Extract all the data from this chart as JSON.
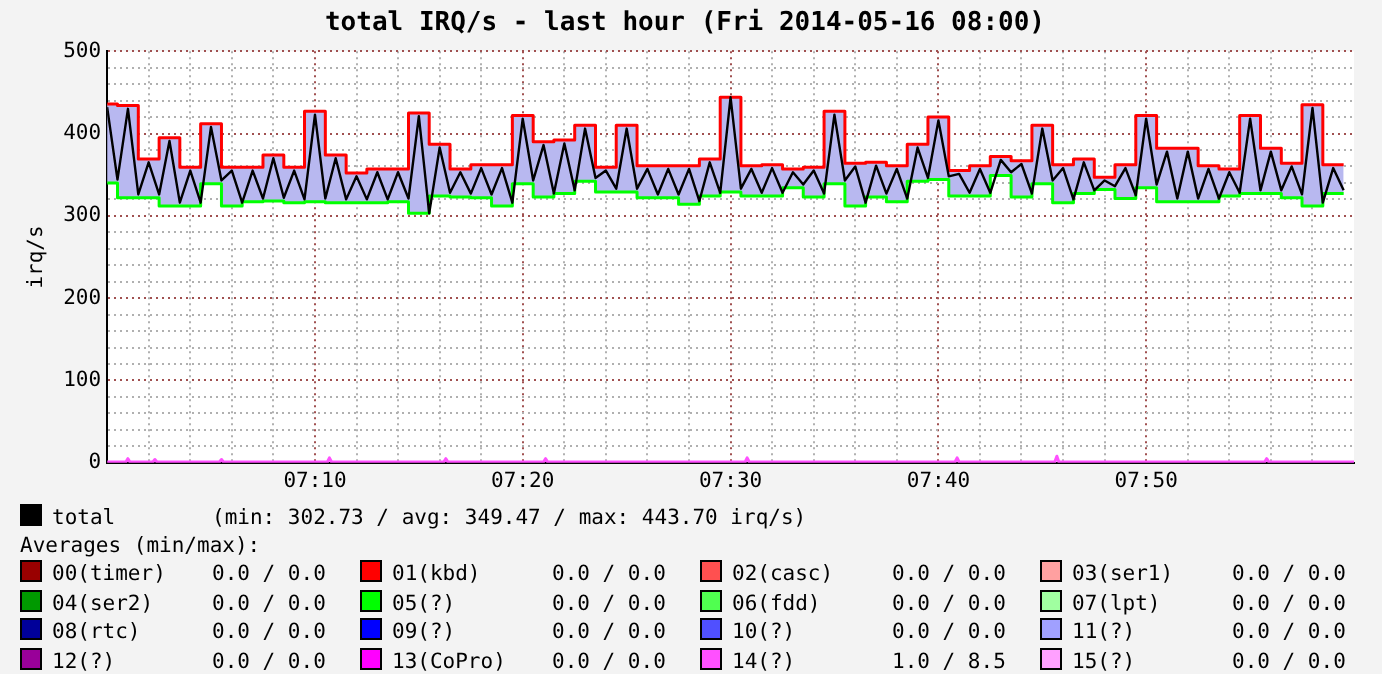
{
  "chart_data": {
    "type": "line",
    "title": "total IRQ/s - last hour (Fri 2014-05-16 08:00)",
    "ylabel": "irq/s",
    "xlim": [
      7,
      8
    ],
    "ylim": [
      0,
      500
    ],
    "xticks": [
      {
        "value": 7.0333,
        "label": null
      },
      {
        "value": 7.0667,
        "label": null
      },
      {
        "value": 7.1,
        "label": null
      },
      {
        "value": 7.1333,
        "label": null
      },
      {
        "value": 7.1667,
        "label": "07:10"
      },
      {
        "value": 7.2,
        "label": null
      },
      {
        "value": 7.2333,
        "label": null
      },
      {
        "value": 7.2667,
        "label": null
      },
      {
        "value": 7.3,
        "label": null
      },
      {
        "value": 7.3333,
        "label": "07:20"
      },
      {
        "value": 7.3667,
        "label": null
      },
      {
        "value": 7.4,
        "label": null
      },
      {
        "value": 7.4333,
        "label": null
      },
      {
        "value": 7.4667,
        "label": null
      },
      {
        "value": 7.5,
        "label": "07:30"
      },
      {
        "value": 7.5333,
        "label": null
      },
      {
        "value": 7.5667,
        "label": null
      },
      {
        "value": 7.6,
        "label": null
      },
      {
        "value": 7.6333,
        "label": null
      },
      {
        "value": 7.6667,
        "label": "07:40"
      },
      {
        "value": 7.7,
        "label": null
      },
      {
        "value": 7.7333,
        "label": null
      },
      {
        "value": 7.7667,
        "label": null
      },
      {
        "value": 7.8,
        "label": null
      },
      {
        "value": 7.8333,
        "label": "07:50"
      },
      {
        "value": 7.8667,
        "label": null
      },
      {
        "value": 7.9,
        "label": null
      },
      {
        "value": 7.9333,
        "label": null
      },
      {
        "value": 7.9667,
        "label": null
      }
    ],
    "yticks": [
      0,
      {
        "value": 20,
        "label": null
      },
      {
        "value": 40,
        "label": null
      },
      {
        "value": 60,
        "label": null
      },
      {
        "value": 80,
        "label": null
      },
      100,
      {
        "value": 120,
        "label": null
      },
      {
        "value": 140,
        "label": null
      },
      {
        "value": 160,
        "label": null
      },
      {
        "value": 180,
        "label": null
      },
      200,
      {
        "value": 220,
        "label": null
      },
      {
        "value": 240,
        "label": null
      },
      {
        "value": 260,
        "label": null
      },
      {
        "value": 280,
        "label": null
      },
      300,
      {
        "value": 320,
        "label": null
      },
      {
        "value": 340,
        "label": null
      },
      {
        "value": 360,
        "label": null
      },
      {
        "value": 380,
        "label": null
      },
      400,
      {
        "value": 420,
        "label": null
      },
      {
        "value": 440,
        "label": null
      },
      {
        "value": 460,
        "label": null
      },
      {
        "value": 480,
        "label": null
      },
      500
    ],
    "grid": true,
    "legend": "bottom",
    "annotations": [
      "(min: 302.73 / avg: 349.47 / max: 443.70 irq/s)",
      "Averages (min/max):",
      "0.0 / 0.0",
      "0.0 / 0.0",
      "0.0 / 0.0",
      "0.0 / 0.0",
      "0.0 / 0.0",
      "0.0 / 0.0",
      "0.0 / 0.0",
      "0.0 / 0.0",
      "0.0 / 0.0",
      "0.0 / 0.0",
      "0.0 / 0.0",
      "0.0 / 0.0",
      "0.0 / 0.0",
      "0.0 / 0.0",
      "1.0 / 8.5",
      "0.0 / 0.0"
    ],
    "series": [
      {
        "type": "step",
        "color": "#ff0000",
        "x": [
          7,
          7.0083,
          7.0167,
          7.025,
          7.0333,
          7.0417,
          7.05,
          7.0583,
          7.0667,
          7.075,
          7.0833,
          7.0917,
          7.1,
          7.1083,
          7.1167,
          7.125,
          7.1333,
          7.1417,
          7.15,
          7.1583,
          7.1667,
          7.175,
          7.1833,
          7.1917,
          7.2,
          7.2083,
          7.2167,
          7.225,
          7.2333,
          7.2417,
          7.25,
          7.2583,
          7.2667,
          7.275,
          7.2833,
          7.2917,
          7.3,
          7.3083,
          7.3167,
          7.325,
          7.3333,
          7.3417,
          7.35,
          7.3583,
          7.3667,
          7.375,
          7.3833,
          7.3917,
          7.4,
          7.4083,
          7.4167,
          7.425,
          7.4333,
          7.4417,
          7.45,
          7.4583,
          7.4667,
          7.475,
          7.4833,
          7.4917,
          7.5,
          7.5083,
          7.5167,
          7.525,
          7.5333,
          7.5417,
          7.55,
          7.5583,
          7.5667,
          7.575,
          7.5833,
          7.5917,
          7.6,
          7.6083,
          7.6167,
          7.625,
          7.6333,
          7.6417,
          7.65,
          7.6583,
          7.6667,
          7.675,
          7.6833,
          7.6917,
          7.7,
          7.7083,
          7.7167,
          7.725,
          7.7333,
          7.7417,
          7.75,
          7.7583,
          7.7667,
          7.775,
          7.7833,
          7.7917,
          7.8,
          7.8083,
          7.8167,
          7.825,
          7.8333,
          7.8417,
          7.85,
          7.8583,
          7.8667,
          7.875,
          7.8833,
          7.8917,
          7.9,
          7.9083,
          7.9167,
          7.925,
          7.9333,
          7.9417,
          7.95,
          7.9583,
          7.9667,
          7.975,
          7.9833,
          7.9917
        ],
        "values": [
          436,
          436,
          434,
          434,
          369,
          369,
          395,
          395,
          359,
          359,
          412,
          412,
          359,
          359,
          359,
          359,
          374,
          374,
          359,
          359,
          427,
          427,
          374,
          374,
          352,
          352,
          357,
          357,
          357,
          357,
          425,
          425,
          387,
          387,
          357,
          357,
          362,
          362,
          362,
          362,
          422,
          422,
          390,
          390,
          392,
          392,
          410,
          410,
          359,
          359,
          410,
          410,
          361,
          361,
          361,
          361,
          361,
          361,
          369,
          369,
          444,
          444,
          361,
          361,
          362,
          362,
          357,
          357,
          359,
          359,
          427,
          427,
          364,
          364,
          365,
          365,
          361,
          361,
          387,
          387,
          420,
          420,
          355,
          355,
          361,
          361,
          372,
          372,
          367,
          367,
          410,
          410,
          362,
          362,
          369,
          369,
          347,
          347,
          362,
          362,
          422,
          422,
          382,
          382,
          382,
          382,
          361,
          361,
          357,
          357,
          422,
          422,
          382,
          382,
          364,
          364,
          435,
          435,
          362,
          362
        ]
      },
      {
        "type": "step",
        "color": "#00ff00",
        "x": [
          7,
          7.0083,
          7.0167,
          7.025,
          7.0333,
          7.0417,
          7.05,
          7.0583,
          7.0667,
          7.075,
          7.0833,
          7.0917,
          7.1,
          7.1083,
          7.1167,
          7.125,
          7.1333,
          7.1417,
          7.15,
          7.1583,
          7.1667,
          7.175,
          7.1833,
          7.1917,
          7.2,
          7.2083,
          7.2167,
          7.225,
          7.2333,
          7.2417,
          7.25,
          7.2583,
          7.2667,
          7.275,
          7.2833,
          7.2917,
          7.3,
          7.3083,
          7.3167,
          7.325,
          7.3333,
          7.3417,
          7.35,
          7.3583,
          7.3667,
          7.375,
          7.3833,
          7.3917,
          7.4,
          7.4083,
          7.4167,
          7.425,
          7.4333,
          7.4417,
          7.45,
          7.4583,
          7.4667,
          7.475,
          7.4833,
          7.4917,
          7.5,
          7.5083,
          7.5167,
          7.525,
          7.5333,
          7.5417,
          7.55,
          7.5583,
          7.5667,
          7.575,
          7.5833,
          7.5917,
          7.6,
          7.6083,
          7.6167,
          7.625,
          7.6333,
          7.6417,
          7.65,
          7.6583,
          7.6667,
          7.675,
          7.6833,
          7.6917,
          7.7,
          7.7083,
          7.7167,
          7.725,
          7.7333,
          7.7417,
          7.75,
          7.7583,
          7.7667,
          7.775,
          7.7833,
          7.7917,
          7.8,
          7.8083,
          7.8167,
          7.825,
          7.8333,
          7.8417,
          7.85,
          7.8583,
          7.8667,
          7.875,
          7.8833,
          7.8917,
          7.9,
          7.9083,
          7.9167,
          7.925,
          7.9333,
          7.9417,
          7.95,
          7.9583,
          7.9667,
          7.975,
          7.9833,
          7.9917
        ],
        "values": [
          340,
          340,
          322,
          322,
          322,
          322,
          312,
          312,
          312,
          312,
          339,
          339,
          312,
          312,
          317,
          317,
          318,
          318,
          316,
          316,
          317,
          317,
          316,
          316,
          316,
          316,
          316,
          316,
          317,
          317,
          303,
          303,
          324,
          324,
          323,
          323,
          322,
          322,
          312,
          312,
          339,
          339,
          323,
          323,
          327,
          327,
          342,
          342,
          329,
          329,
          329,
          329,
          322,
          322,
          322,
          322,
          314,
          314,
          324,
          324,
          329,
          329,
          324,
          324,
          324,
          324,
          334,
          334,
          323,
          323,
          339,
          339,
          312,
          312,
          323,
          323,
          317,
          317,
          342,
          342,
          344,
          344,
          324,
          324,
          324,
          324,
          349,
          349,
          323,
          323,
          339,
          339,
          316,
          316,
          327,
          327,
          332,
          332,
          321,
          321,
          334,
          334,
          317,
          317,
          317,
          317,
          317,
          317,
          324,
          324,
          327,
          327,
          327,
          327,
          322,
          322,
          312,
          312,
          327,
          327
        ]
      },
      {
        "name": "total",
        "color": "#000000",
        "x": [
          7,
          7.0083,
          7.0167,
          7.025,
          7.0333,
          7.0417,
          7.05,
          7.0583,
          7.0667,
          7.075,
          7.0833,
          7.0917,
          7.1,
          7.1083,
          7.1167,
          7.125,
          7.1333,
          7.1417,
          7.15,
          7.1583,
          7.1667,
          7.175,
          7.1833,
          7.1917,
          7.2,
          7.2083,
          7.2167,
          7.225,
          7.2333,
          7.2417,
          7.25,
          7.2583,
          7.2667,
          7.275,
          7.2833,
          7.2917,
          7.3,
          7.3083,
          7.3167,
          7.325,
          7.3333,
          7.3417,
          7.35,
          7.3583,
          7.3667,
          7.375,
          7.3833,
          7.3917,
          7.4,
          7.4083,
          7.4167,
          7.425,
          7.4333,
          7.4417,
          7.45,
          7.4583,
          7.4667,
          7.475,
          7.4833,
          7.4917,
          7.5,
          7.5083,
          7.5167,
          7.525,
          7.5333,
          7.5417,
          7.55,
          7.5583,
          7.5667,
          7.575,
          7.5833,
          7.5917,
          7.6,
          7.6083,
          7.6167,
          7.625,
          7.6333,
          7.6417,
          7.65,
          7.6583,
          7.6667,
          7.675,
          7.6833,
          7.6917,
          7.7,
          7.7083,
          7.7167,
          7.725,
          7.7333,
          7.7417,
          7.75,
          7.7583,
          7.7667,
          7.775,
          7.7833,
          7.7917,
          7.8,
          7.8083,
          7.8167,
          7.825,
          7.8333,
          7.8417,
          7.85,
          7.8583,
          7.8667,
          7.875,
          7.8833,
          7.8917,
          7.9,
          7.9083,
          7.9167,
          7.925,
          7.9333,
          7.9417,
          7.95,
          7.9583,
          7.9667,
          7.975,
          7.9833,
          7.9917
        ],
        "values": [
          432,
          344,
          430,
          326,
          365,
          326,
          391,
          316,
          355,
          316,
          408,
          343,
          355,
          316,
          355,
          321,
          370,
          322,
          355,
          320,
          423,
          321,
          370,
          320,
          348,
          320,
          353,
          320,
          353,
          321,
          421,
          303,
          383,
          328,
          353,
          327,
          358,
          326,
          358,
          316,
          418,
          343,
          386,
          327,
          388,
          331,
          406,
          346,
          355,
          333,
          406,
          333,
          357,
          326,
          357,
          326,
          357,
          318,
          365,
          328,
          444,
          333,
          357,
          328,
          358,
          328,
          353,
          338,
          355,
          327,
          423,
          343,
          360,
          316,
          361,
          327,
          357,
          321,
          383,
          346,
          416,
          348,
          351,
          328,
          357,
          328,
          368,
          353,
          363,
          327,
          406,
          343,
          358,
          320,
          365,
          331,
          343,
          336,
          358,
          325,
          418,
          338,
          378,
          321,
          378,
          321,
          357,
          321,
          353,
          328,
          418,
          331,
          378,
          331,
          360,
          326,
          431,
          316,
          358,
          331
        ],
        "upper": [
          436,
          436,
          434,
          434,
          369,
          369,
          395,
          395,
          359,
          359,
          412,
          412,
          359,
          359,
          359,
          359,
          374,
          374,
          359,
          359,
          427,
          427,
          374,
          374,
          352,
          352,
          357,
          357,
          357,
          357,
          425,
          425,
          387,
          387,
          357,
          357,
          362,
          362,
          362,
          362,
          422,
          422,
          390,
          390,
          392,
          392,
          410,
          410,
          359,
          359,
          410,
          410,
          361,
          361,
          361,
          361,
          361,
          361,
          369,
          369,
          444,
          444,
          361,
          361,
          362,
          362,
          357,
          357,
          359,
          359,
          427,
          427,
          364,
          364,
          365,
          365,
          361,
          361,
          387,
          387,
          420,
          420,
          355,
          355,
          361,
          361,
          372,
          372,
          367,
          367,
          410,
          410,
          362,
          362,
          369,
          369,
          347,
          347,
          362,
          362,
          422,
          422,
          382,
          382,
          382,
          382,
          361,
          361,
          357,
          357,
          422,
          422,
          382,
          382,
          364,
          364,
          435,
          435,
          362,
          362
        ],
        "lower": [
          340,
          340,
          322,
          322,
          322,
          322,
          312,
          312,
          312,
          312,
          339,
          339,
          312,
          312,
          317,
          317,
          318,
          318,
          316,
          316,
          317,
          317,
          316,
          316,
          316,
          316,
          316,
          316,
          317,
          317,
          303,
          303,
          324,
          324,
          323,
          323,
          322,
          322,
          312,
          312,
          339,
          339,
          323,
          323,
          327,
          327,
          342,
          342,
          329,
          329,
          329,
          329,
          322,
          322,
          322,
          322,
          314,
          314,
          324,
          324,
          329,
          329,
          324,
          324,
          324,
          324,
          334,
          334,
          323,
          323,
          339,
          339,
          312,
          312,
          323,
          323,
          317,
          317,
          342,
          342,
          344,
          344,
          324,
          324,
          324,
          324,
          349,
          349,
          323,
          323,
          339,
          339,
          316,
          316,
          327,
          327,
          332,
          332,
          321,
          321,
          334,
          334,
          317,
          317,
          317,
          317,
          317,
          317,
          324,
          324,
          327,
          327,
          327,
          327,
          322,
          322,
          312,
          312,
          327,
          327
        ]
      },
      {
        "name": "00(timer)",
        "color": "#990000"
      },
      {
        "name": "01(kbd)",
        "color": "#ff0000"
      },
      {
        "name": "02(casc)",
        "color": "#ff5050"
      },
      {
        "name": "03(ser1)",
        "color": "#ffa0a0"
      },
      {
        "name": "04(ser2)",
        "color": "#009900"
      },
      {
        "name": "05(?)",
        "color": "#00ff00"
      },
      {
        "name": "06(fdd)",
        "color": "#50ff50"
      },
      {
        "name": "07(lpt)",
        "color": "#a0ffa0"
      },
      {
        "name": "08(rtc)",
        "color": "#000099"
      },
      {
        "name": "09(?)",
        "color": "#0000ff"
      },
      {
        "name": "10(?)",
        "color": "#5050ff"
      },
      {
        "name": "11(?)",
        "color": "#a0a0ff"
      },
      {
        "name": "12(?)",
        "color": "#990099"
      },
      {
        "name": "13(CoPro)",
        "color": "#ff00ff"
      },
      {
        "name": "14(?)",
        "color": "#ff50ff",
        "x": [
          7,
          7.015,
          7.0167,
          7.0183,
          7.0367,
          7.0383,
          7.04,
          7.09,
          7.0917,
          7.0933,
          7.1767,
          7.1783,
          7.18,
          7.27,
          7.2717,
          7.2733,
          7.35,
          7.3517,
          7.3533,
          7.5117,
          7.5133,
          7.515,
          7.68,
          7.6817,
          7.6833,
          7.76,
          7.7617,
          7.7633,
          7.9283,
          7.93,
          7.9317,
          8
        ],
        "values": [
          1,
          1,
          5,
          1,
          1,
          4,
          1,
          1,
          4,
          1,
          1,
          6,
          1,
          1,
          5,
          1,
          1,
          5,
          1,
          1,
          6,
          1,
          1,
          6,
          1,
          1,
          8,
          1,
          1,
          5,
          1,
          1
        ]
      },
      {
        "name": "15(?)",
        "color": "#ffa0ff"
      }
    ]
  }
}
